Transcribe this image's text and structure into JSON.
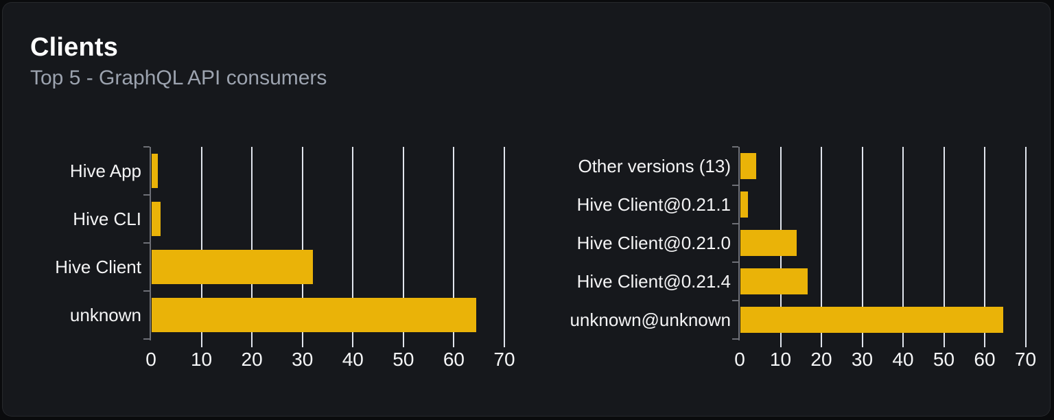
{
  "header": {
    "title": "Clients",
    "subtitle": "Top 5 - GraphQL API consumers"
  },
  "colors": {
    "bar": "#eab308",
    "card_background": "#16181c",
    "page_background": "#0a0b0d",
    "gridline": "#e2e6ee",
    "axis": "#6e7077",
    "title_text": "#ffffff",
    "subtitle_text": "#9ca3af",
    "category_label_text": "#f4f4f5",
    "axis_label_text": "#f5f6f7"
  },
  "chart_data": [
    {
      "type": "bar",
      "orientation": "horizontal",
      "title": "",
      "categories": [
        "Hive App",
        "Hive CLI",
        "Hive Client",
        "unknown"
      ],
      "values": [
        1.2,
        1.8,
        32,
        64.3
      ],
      "xlim": [
        0,
        70
      ],
      "xticks": [
        0,
        10,
        20,
        30,
        40,
        50,
        60,
        70
      ],
      "grid": true,
      "legend": false,
      "bar_color": "#eab308"
    },
    {
      "type": "bar",
      "orientation": "horizontal",
      "title": "",
      "categories": [
        "Other versions (13)",
        "Hive Client@0.21.1",
        "Hive Client@0.21.0",
        "Hive Client@0.21.4",
        "unknown@unknown"
      ],
      "values": [
        3.9,
        1.8,
        13.7,
        16.4,
        64.3
      ],
      "xlim": [
        0,
        70
      ],
      "xticks": [
        0,
        10,
        20,
        30,
        40,
        50,
        60,
        70
      ],
      "grid": true,
      "legend": false,
      "bar_color": "#eab308"
    }
  ]
}
